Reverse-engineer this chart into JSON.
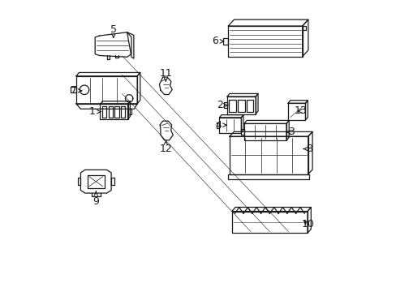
{
  "bg_color": "#ffffff",
  "line_color": "#1a1a1a",
  "lw": 0.9,
  "fig_w": 4.89,
  "fig_h": 3.6,
  "dpi": 100,
  "label_fs": 9,
  "parts_labels": {
    "1": [
      0.135,
      0.618,
      0.175,
      0.618
    ],
    "2": [
      0.575,
      0.64,
      0.61,
      0.64
    ],
    "3": [
      0.82,
      0.548,
      0.8,
      0.548
    ],
    "4": [
      0.568,
      0.572,
      0.6,
      0.572
    ],
    "5": [
      0.208,
      0.9,
      0.208,
      0.87
    ],
    "6": [
      0.558,
      0.86,
      0.59,
      0.86
    ],
    "7": [
      0.072,
      0.69,
      0.11,
      0.69
    ],
    "8": [
      0.88,
      0.49,
      0.86,
      0.49
    ],
    "9": [
      0.148,
      0.31,
      0.148,
      0.345
    ],
    "10": [
      0.878,
      0.23,
      0.855,
      0.25
    ],
    "11": [
      0.388,
      0.75,
      0.388,
      0.72
    ],
    "12": [
      0.388,
      0.49,
      0.388,
      0.52
    ],
    "13": [
      0.852,
      0.62,
      0.832,
      0.62
    ]
  }
}
